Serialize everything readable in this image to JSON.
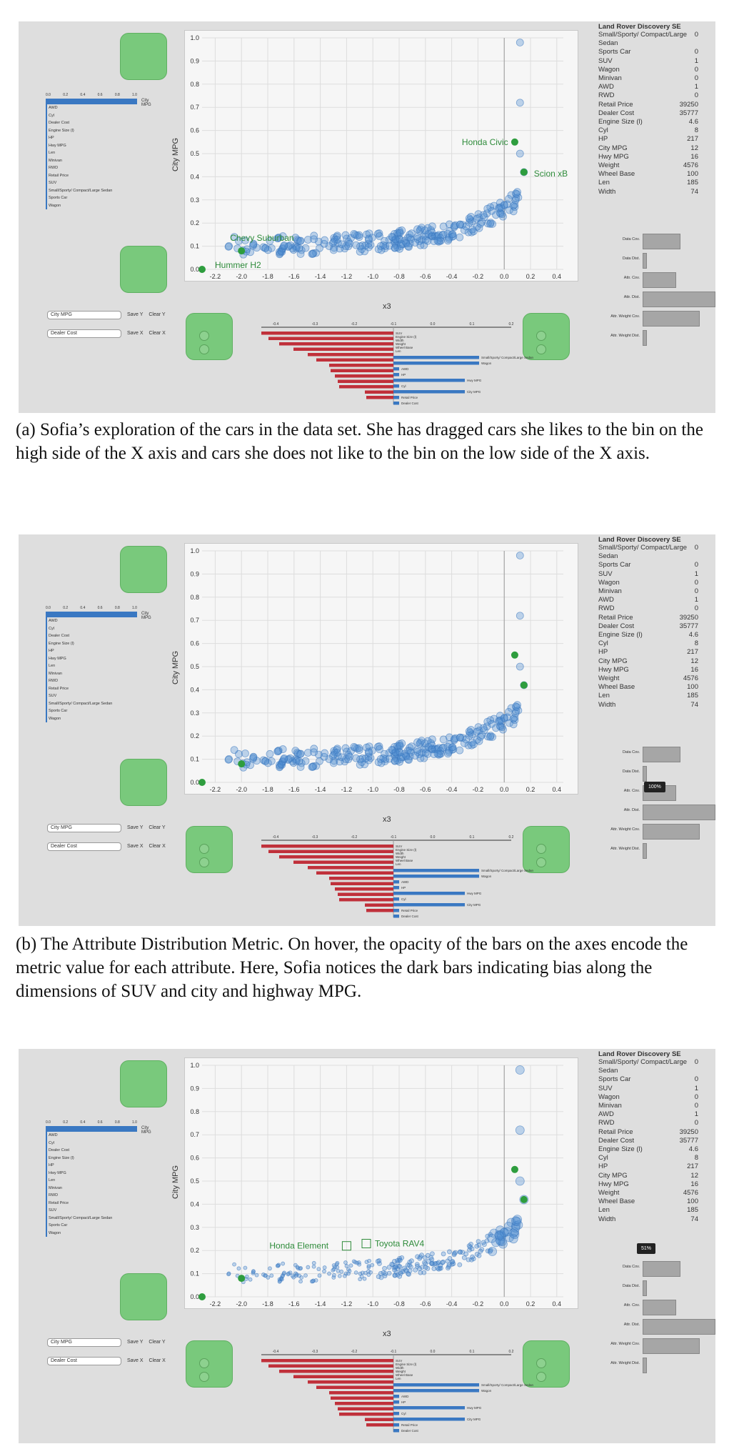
{
  "panels": [
    {
      "id": "a",
      "caption": "(a) Sofia’s exploration of the cars in the data set. She has dragged cars she likes to the bin on the high side of the X axis and cars she does not like to the bin on the low side of the X axis.",
      "y_label": "City MPG",
      "x_label": "x3",
      "annotations": [
        "Honda Civic",
        "Scion xB",
        "Chevy Suburban",
        "Hummer H2"
      ],
      "tooltip": ""
    },
    {
      "id": "b",
      "caption": "(b) The Attribute Distribution Metric. On hover, the opacity of the bars on the axes encode the metric value for each attribute. Here, Sofia notices the dark bars indicating bias along the dimensions of SUV and city and highway MPG.",
      "y_label": "City MPG",
      "x_label": "x3",
      "annotations": [],
      "tooltip": "100%"
    },
    {
      "id": "c",
      "caption": "",
      "y_label": "City MPG",
      "x_label": "x3",
      "annotations": [
        "Honda Element",
        "Toyota RAV4"
      ],
      "tooltip": "51%"
    }
  ],
  "y_ticks": [
    "1.0",
    "0.9",
    "0.8",
    "0.7",
    "0.6",
    "0.5",
    "0.4",
    "0.3",
    "0.2",
    "0.1",
    "0.0"
  ],
  "x_ticks": [
    "-2.2",
    "-2.0",
    "-1.8",
    "-1.6",
    "-1.4",
    "-1.2",
    "-1.0",
    "-0.8",
    "-0.6",
    "-0.4",
    "-0.2",
    "0.0",
    "0.2",
    "0.4"
  ],
  "left_list": {
    "scale": [
      "0.0",
      "0.2",
      "0.4",
      "0.6",
      "0.8",
      "1.0"
    ],
    "top_bar_label": "City MPG",
    "items": [
      "AWD",
      "Cyl",
      "Dealer Cost",
      "Engine Size (l)",
      "HP",
      "Hwy MPG",
      "Len",
      "Minivan",
      "RWD",
      "Retail Price",
      "SUV",
      "Small/Sporty/ Compact/Large Sedan",
      "Sports Car",
      "Wagon"
    ]
  },
  "controls": {
    "y_select": "City MPG",
    "x_select": "Dealer Cost",
    "save_y": "Save Y",
    "clear_y": "Clear Y",
    "save_x": "Save X",
    "clear_x": "Clear X"
  },
  "weights": {
    "ticks": [
      "-0.4",
      "-0.3",
      "-0.2",
      "-0.1",
      "0.0",
      "0.1",
      "0.2"
    ],
    "negative_labels": [
      "SUV",
      "Engine Size (l)",
      "Width",
      "Weight",
      "Wheel Base",
      "Len"
    ],
    "positive_labels": [
      "Small/Sporty/ Compact/Large Sedan",
      "Wagon",
      "AWD",
      "HP",
      "Hwy MPG",
      "Cyl",
      "City MPG",
      "Retail Price",
      "Dealer Cost"
    ]
  },
  "info": {
    "title": "Land Rover Discovery SE",
    "rows": [
      [
        "Small/Sporty/ Compact/Large Sedan",
        "0"
      ],
      [
        "Sports Car",
        "0"
      ],
      [
        "SUV",
        "1"
      ],
      [
        "Wagon",
        "0"
      ],
      [
        "Minivan",
        "0"
      ],
      [
        "AWD",
        "1"
      ],
      [
        "RWD",
        "0"
      ],
      [
        "Retail Price",
        "39250"
      ],
      [
        "Dealer Cost",
        "35777"
      ],
      [
        "Engine Size (l)",
        "4.6"
      ],
      [
        "Cyl",
        "8"
      ],
      [
        "HP",
        "217"
      ],
      [
        "City MPG",
        "12"
      ],
      [
        "Hwy MPG",
        "16"
      ],
      [
        "Weight",
        "4576"
      ],
      [
        "Wheel Base",
        "100"
      ],
      [
        "Len",
        "185"
      ],
      [
        "Width",
        "74"
      ]
    ]
  },
  "metrics": {
    "labels": [
      "Data Cov.",
      "Data Dist.",
      "Attr. Cov.",
      "Attr. Dist.",
      "Attr. Weight Cov.",
      "Attr. Weight Dist."
    ],
    "values": [
      0.51,
      0.02,
      0.45,
      1.0,
      0.78,
      0.02
    ]
  },
  "chart_data": {
    "type": "scatter",
    "xlabel": "x3",
    "ylabel": "City MPG",
    "xlim": [
      -2.3,
      0.45
    ],
    "ylim": [
      0,
      1.0
    ],
    "highlighted_points": [
      {
        "name": "Honda Civic",
        "x": 0.08,
        "y": 0.55
      },
      {
        "name": "Scion xB",
        "x": 0.15,
        "y": 0.42
      },
      {
        "name": "Chevy Suburban",
        "x": -2.0,
        "y": 0.08
      },
      {
        "name": "Hummer H2",
        "x": -2.3,
        "y": 0.0
      }
    ]
  }
}
